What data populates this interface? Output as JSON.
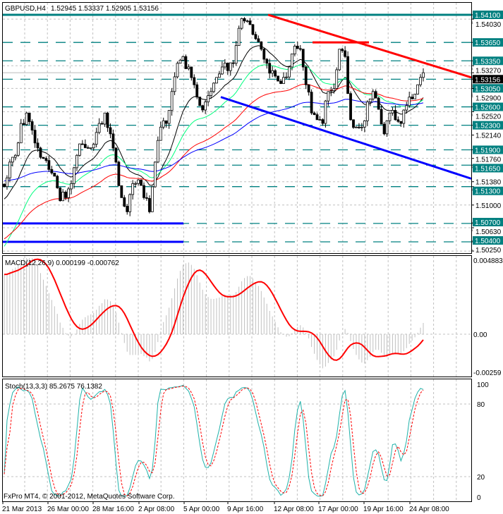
{
  "header": {
    "symbol_timeframe": "GBPUSD,H4",
    "ohlc": "1.52945 1.53337 1.52905 1.53156"
  },
  "copyright": "FxPro MT4, © 2001-2012, MetaQuotes Software Corp.",
  "colors": {
    "background": "#ffffff",
    "level_line": "#008080",
    "resistance_trend": "#ff0000",
    "support_trend": "#0000ff",
    "candle": "#000000",
    "ma_fast": "#000000",
    "ma_medium": "#00ff7f",
    "ma_slow": "#ff0000",
    "ma_slowest": "#0000ff",
    "macd_histogram": "#c0c0c0",
    "macd_signal": "#ff0000",
    "stoch_main": "#20b2aa",
    "stoch_signal": "#ff0000"
  },
  "chart_data": [
    {
      "type": "candlestick",
      "title": "GBPUSD,H4",
      "grid": true,
      "ylim": [
        1.502,
        1.5423
      ],
      "x_tick_labels": [
        "21 Mar 2013",
        "26 Mar 00:00",
        "28 Mar 16:00",
        "2 Apr 08:00",
        "5 Apr 00:00",
        "9 Apr 16:00",
        "12 Apr 08:00",
        "17 Apr 00:00",
        "19 Apr 16:00",
        "24 Apr 08:00"
      ],
      "y_tick_labels": [
        "1.54030",
        "1.53270",
        "1.52900",
        "1.52520",
        "1.52140",
        "1.51760",
        "1.51380",
        "1.51000",
        "1.50630",
        "1.50250"
      ],
      "last_price": "1.53156",
      "close_path": [
        1.513,
        1.517,
        1.5181,
        1.5233,
        1.525,
        1.5222,
        1.5193,
        1.5176,
        1.5158,
        1.5147,
        1.5107,
        1.5112,
        1.5135,
        1.5181,
        1.5199,
        1.5193,
        1.5199,
        1.5233,
        1.525,
        1.5216,
        1.517,
        1.5112,
        1.5089,
        1.5135,
        1.5141,
        1.5112,
        1.5089,
        1.517,
        1.5227,
        1.5233,
        1.5285,
        1.5331,
        1.5342,
        1.5325,
        1.5296,
        1.5262,
        1.5268,
        1.5285,
        1.5308,
        1.5325,
        1.5319,
        1.5331,
        1.5388,
        1.54,
        1.5394,
        1.5371,
        1.5354,
        1.5331,
        1.5319,
        1.5302,
        1.5308,
        1.5325,
        1.5359,
        1.5354,
        1.5296,
        1.525,
        1.5239,
        1.5233,
        1.5285,
        1.529,
        1.5354,
        1.5342,
        1.5239,
        1.5227,
        1.5227,
        1.5268,
        1.5285,
        1.5256,
        1.5216,
        1.525,
        1.5239,
        1.5233,
        1.5262,
        1.5273,
        1.5296,
        1.53156
      ],
      "horizontal_levels": [
        "1.54100",
        "1.53650",
        "1.53350",
        "1.53050",
        "1.52600",
        "1.52300",
        "1.51900",
        "1.51650",
        "1.51300",
        "1.50700",
        "1.50400"
      ],
      "support_levels": [
        1.507,
        1.504
      ],
      "resistance_trendline": {
        "from": 1.541,
        "to": 1.5308
      },
      "resistance_horizontal": 1.5365,
      "support_trendline": {
        "from": 1.5276,
        "to": 1.5143
      }
    },
    {
      "type": "histogram+line",
      "title": "MACD(12,26,9) 0.000199 -0.000762",
      "ylim": [
        -0.00259,
        0.004883
      ],
      "y_tick_labels": [
        "0.004883",
        "0.00",
        "-0.00259"
      ]
    },
    {
      "type": "line",
      "title": "Stoch(13,3,3) 85.2675 76.1382",
      "ylim": [
        0,
        100
      ],
      "y_tick_labels": [
        "100",
        "80",
        "20",
        "0"
      ]
    }
  ]
}
